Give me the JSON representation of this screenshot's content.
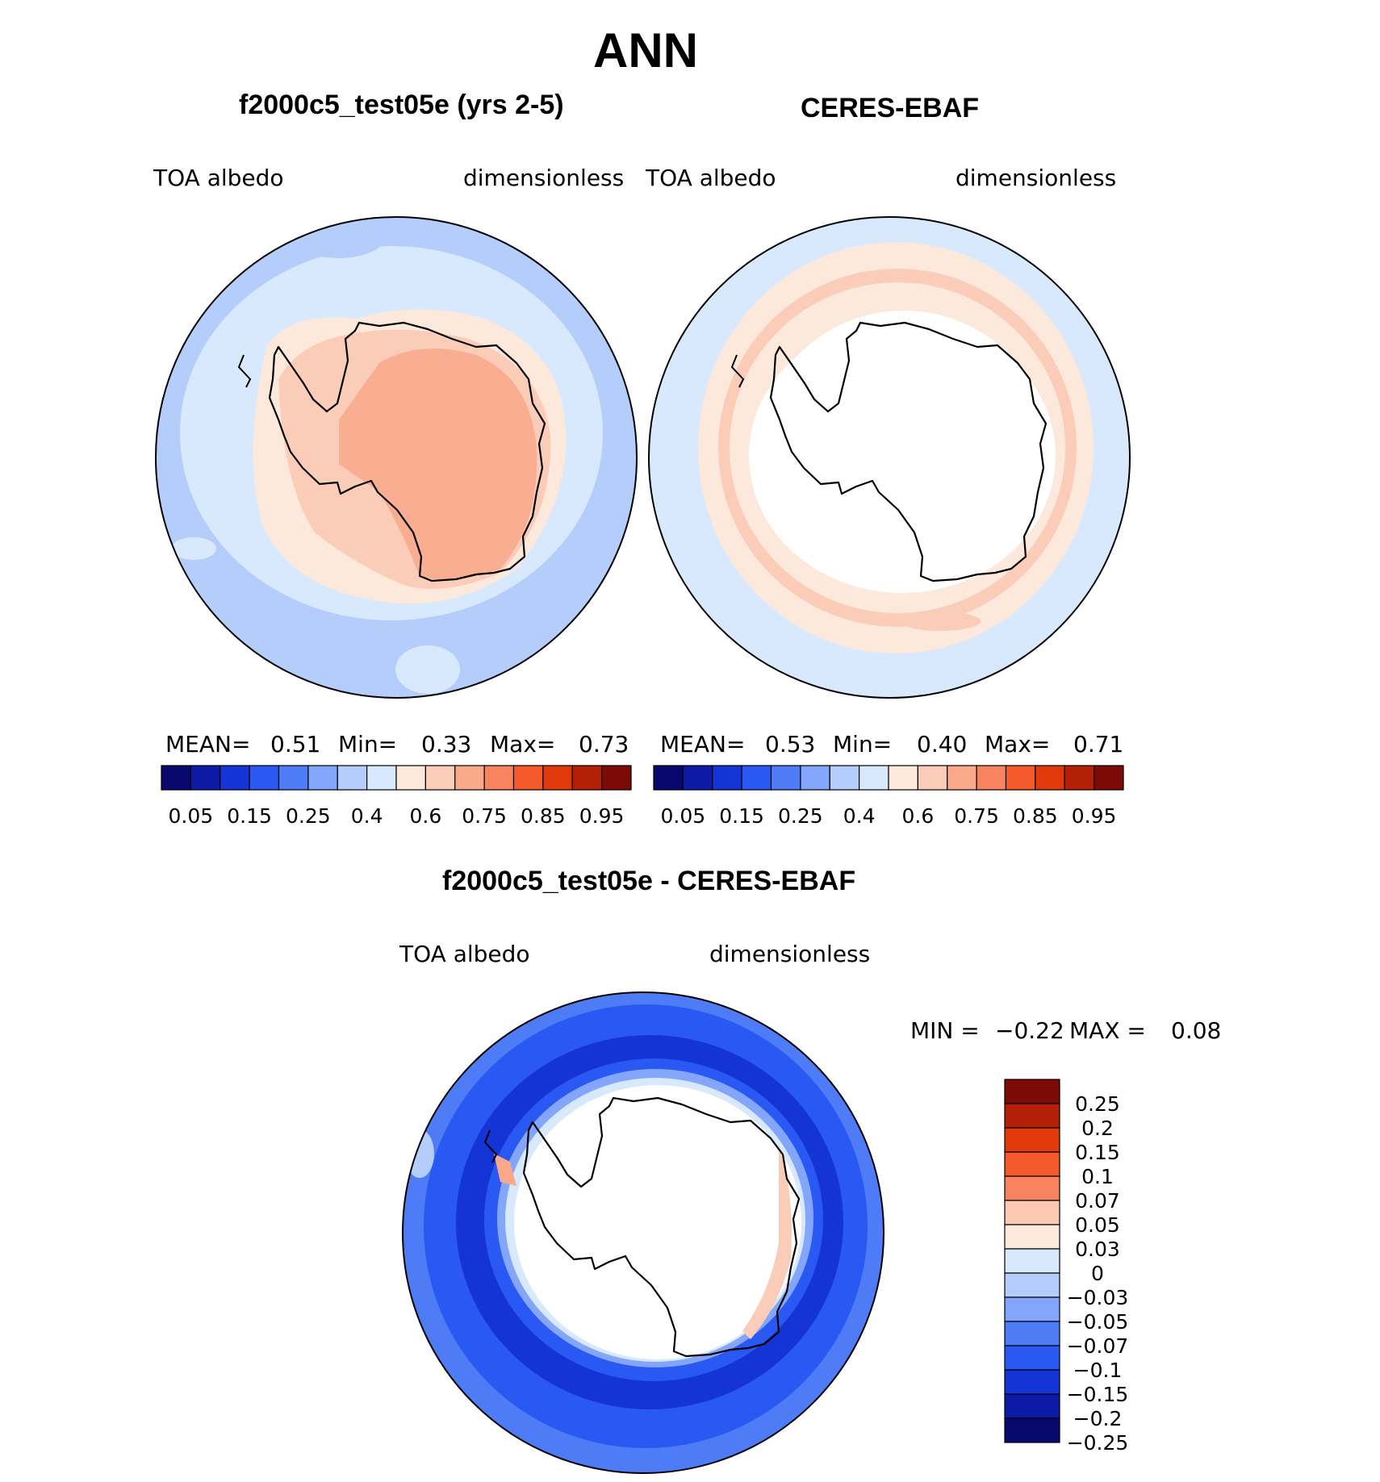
{
  "title": "ANN",
  "panels": [
    {
      "title": "f2000c5_test05e (yrs 2-5)",
      "left_label": "TOA  albedo",
      "right_label": "dimensionless",
      "stats": {
        "mean_label": "MEAN=",
        "mean": "0.51",
        "min_label": "Min=",
        "min": "0.33",
        "max_label": "Max=",
        "max": "0.73"
      }
    },
    {
      "title": "CERES-EBAF",
      "left_label": "TOA  albedo",
      "right_label": "dimensionless",
      "stats": {
        "mean_label": "MEAN=",
        "mean": "0.53",
        "min_label": "Min=",
        "min": "0.40",
        "max_label": "Max=",
        "max": "0.71"
      }
    }
  ],
  "diff_panel": {
    "title": "f2000c5_test05e - CERES-EBAF",
    "left_label": "TOA  albedo",
    "right_label": "dimensionless",
    "min_label": "MIN =",
    "min": "−0.22",
    "max_label": "MAX =",
    "max": "0.08"
  },
  "colorbar_main": {
    "colors": [
      "#08086e",
      "#0c1aa6",
      "#1434d6",
      "#2a58f2",
      "#4e7cf6",
      "#84a6fa",
      "#b4cdfb",
      "#d8e9fd",
      "#fde9dc",
      "#fbcdb8",
      "#f9a88a",
      "#f7845e",
      "#f65a2c",
      "#e03a0a",
      "#b42006",
      "#7c0a06"
    ],
    "tick_labels": [
      "0.05",
      "0.15",
      "0.25",
      "0.4",
      "0.6",
      "0.75",
      "0.85",
      "0.95"
    ]
  },
  "colorbar_diff": {
    "colors": [
      "#7c0a06",
      "#b42006",
      "#e03a0a",
      "#f65a2c",
      "#f7845e",
      "#fbc8b0",
      "#fde9dc",
      "#d8e9fd",
      "#b4cdfb",
      "#84a6fa",
      "#4e7cf6",
      "#2a58f2",
      "#1434d6",
      "#0c1aa6",
      "#08086e"
    ],
    "tick_labels": [
      "0.25",
      "0.2",
      "0.15",
      "0.1",
      "0.07",
      "0.05",
      "0.03",
      "0",
      "−0.03",
      "−0.05",
      "−0.07",
      "−0.1",
      "−0.15",
      "−0.2",
      "−0.25"
    ]
  }
}
